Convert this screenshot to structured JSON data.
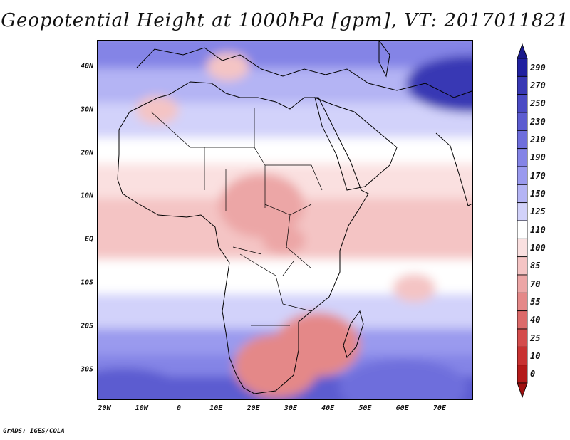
{
  "title": "Geopotential Height at 1000hPa [gpm], VT: 2017011821",
  "credit": "GrADS: IGES/COLA",
  "map": {
    "variable": "Geopotential Height",
    "level": "1000hPa",
    "units": "gpm",
    "valid_time": "2017011821",
    "lon_range": [
      -22,
      79
    ],
    "lat_range": [
      -37,
      46
    ],
    "lat_ticks": [
      {
        "value": 40,
        "label": "40N"
      },
      {
        "value": 30,
        "label": "30N"
      },
      {
        "value": 20,
        "label": "20N"
      },
      {
        "value": 10,
        "label": "10N"
      },
      {
        "value": 0,
        "label": "EQ"
      },
      {
        "value": -10,
        "label": "10S"
      },
      {
        "value": -20,
        "label": "20S"
      },
      {
        "value": -30,
        "label": "30S"
      }
    ],
    "lon_ticks": [
      {
        "value": -20,
        "label": "20W"
      },
      {
        "value": -10,
        "label": "10W"
      },
      {
        "value": 0,
        "label": "0"
      },
      {
        "value": 10,
        "label": "10E"
      },
      {
        "value": 20,
        "label": "20E"
      },
      {
        "value": 30,
        "label": "30E"
      },
      {
        "value": 40,
        "label": "40E"
      },
      {
        "value": 50,
        "label": "50E"
      },
      {
        "value": 60,
        "label": "60E"
      },
      {
        "value": 70,
        "label": "70E"
      }
    ],
    "features": [
      {
        "name": "low-sahel-central-africa",
        "lon": 22,
        "lat": 8,
        "value": 75
      },
      {
        "name": "low-great-lakes",
        "lon": 28,
        "lat": 0,
        "value": 80
      },
      {
        "name": "low-southern-africa",
        "lon": 26,
        "lat": -29,
        "value": 65
      },
      {
        "name": "low-mozambique-channel",
        "lon": 37,
        "lat": -24,
        "value": 55
      },
      {
        "name": "low-southern-italy",
        "lon": 13,
        "lat": 40,
        "value": 95
      },
      {
        "name": "low-morocco",
        "lon": -6,
        "lat": 30,
        "value": 95
      },
      {
        "name": "low-indian-ocean",
        "lon": 63,
        "lat": -11,
        "value": 88
      },
      {
        "name": "high-himalaya",
        "lon": 78,
        "lat": 36,
        "value": 280
      },
      {
        "name": "high-south-atlantic",
        "lon": -15,
        "lat": -36,
        "value": 235
      },
      {
        "name": "high-south-indian-ocean",
        "lon": 60,
        "lat": -34,
        "value": 220
      }
    ]
  },
  "colorbar": {
    "levels": [
      "290",
      "270",
      "250",
      "230",
      "210",
      "190",
      "170",
      "150",
      "125",
      "110",
      "100",
      "85",
      "70",
      "55",
      "40",
      "25",
      "10",
      "0"
    ],
    "colors": [
      "#2020a0",
      "#3838b4",
      "#4a4ac4",
      "#5c5cd0",
      "#6e6edc",
      "#8484e6",
      "#9a9aee",
      "#b4b4f4",
      "#d2d2fa",
      "#ffffff",
      "#fae0e0",
      "#f4c4c4",
      "#eca6a6",
      "#e48888",
      "#dc6a6a",
      "#d44c4c",
      "#c83232",
      "#b41a1a"
    ],
    "top_color": "#1a1a8c",
    "bottom_color": "#a01010"
  }
}
